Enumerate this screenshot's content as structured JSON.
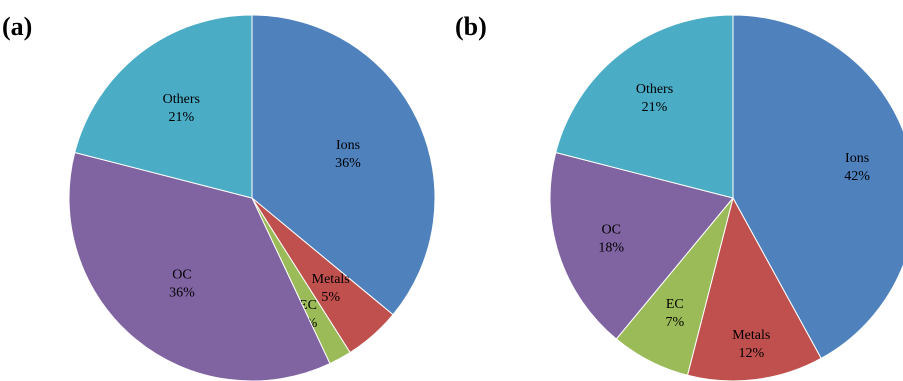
{
  "chart_data": [
    {
      "type": "pie",
      "panel_label": "(a)",
      "slices": [
        {
          "name": "Ions",
          "value": 36,
          "label": "Ions",
          "percent_text": "36%",
          "color": "#4F81BD"
        },
        {
          "name": "Metals",
          "value": 5,
          "label": "Metals",
          "percent_text": "5%",
          "color": "#C0504D"
        },
        {
          "name": "EC",
          "value": 2,
          "label": "EC",
          "percent_text": "2%",
          "color": "#9BBB59"
        },
        {
          "name": "OC",
          "value": 36,
          "label": "OC",
          "percent_text": "36%",
          "color": "#8064A2"
        },
        {
          "name": "Others",
          "value": 21,
          "label": "Others",
          "percent_text": "21%",
          "color": "#4BACC6"
        }
      ]
    },
    {
      "type": "pie",
      "panel_label": "(b)",
      "slices": [
        {
          "name": "Ions",
          "value": 42,
          "label": "Ions",
          "percent_text": "42%",
          "color": "#4F81BD"
        },
        {
          "name": "Metals",
          "value": 12,
          "label": "Metals",
          "percent_text": "12%",
          "color": "#C0504D"
        },
        {
          "name": "EC",
          "value": 7,
          "label": "EC",
          "percent_text": "7%",
          "color": "#9BBB59"
        },
        {
          "name": "OC",
          "value": 18,
          "label": "OC",
          "percent_text": "18%",
          "color": "#8064A2"
        },
        {
          "name": "Others",
          "value": 21,
          "label": "Others",
          "percent_text": "21%",
          "color": "#4BACC6"
        }
      ]
    }
  ]
}
